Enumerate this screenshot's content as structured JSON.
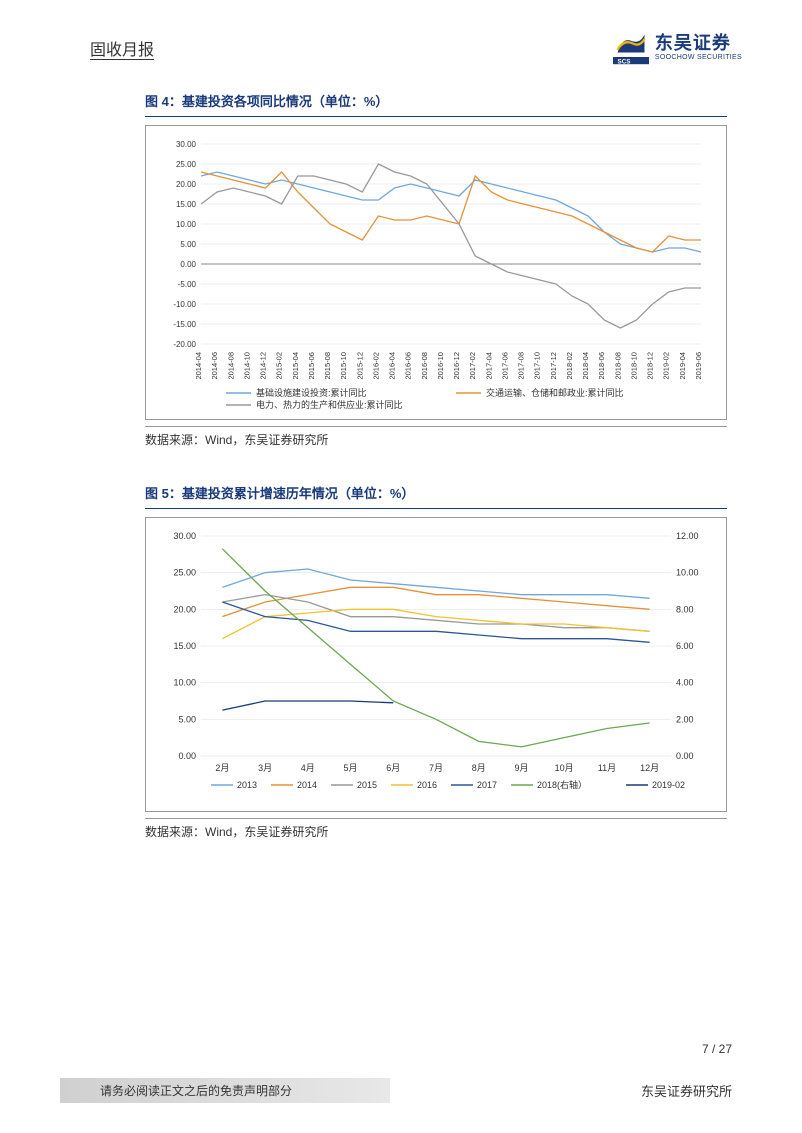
{
  "header": {
    "title": "固收月报",
    "logo_cn": "东吴证券",
    "logo_en": "SOOCHOW SECURITIES",
    "logo_tag": "SCS"
  },
  "fig4": {
    "title": "图 4：基建投资各项同比情况（单位：%）",
    "source": "数据来源：Wind，东吴证券研究所",
    "type": "line",
    "ylim": [
      -20,
      30
    ],
    "ytick_step": 5,
    "yticks": [
      "30.00",
      "25.00",
      "20.00",
      "15.00",
      "10.00",
      "5.00",
      "0.00",
      "-5.00",
      "-10.00",
      "-15.00",
      "-20.00"
    ],
    "xlabels": [
      "2014-04",
      "2014-06",
      "2014-08",
      "2014-10",
      "2014-12",
      "2015-02",
      "2015-04",
      "2015-06",
      "2015-08",
      "2015-10",
      "2015-12",
      "2016-02",
      "2016-04",
      "2016-06",
      "2016-08",
      "2016-10",
      "2016-12",
      "2017-02",
      "2017-04",
      "2017-06",
      "2017-08",
      "2017-10",
      "2017-12",
      "2018-02",
      "2018-04",
      "2018-06",
      "2018-08",
      "2018-10",
      "2018-12",
      "2019-02",
      "2019-04",
      "2019-06"
    ],
    "series": [
      {
        "name": "基础设施建设投资:累计同比",
        "color": "#6fa8dc",
        "values": [
          22,
          23,
          22,
          21,
          20,
          21,
          20,
          19,
          18,
          17,
          16,
          16,
          19,
          20,
          19,
          18,
          17,
          21,
          20,
          19,
          18,
          17,
          16,
          14,
          12,
          8,
          5,
          4,
          3,
          4,
          4,
          3
        ]
      },
      {
        "name": "交通运输、仓储和邮政业:累计同比",
        "color": "#e69138",
        "values": [
          23,
          22,
          21,
          20,
          19,
          23,
          18,
          14,
          10,
          8,
          6,
          12,
          11,
          11,
          12,
          11,
          10,
          22,
          18,
          16,
          15,
          14,
          13,
          12,
          10,
          8,
          6,
          4,
          3,
          7,
          6,
          6
        ]
      },
      {
        "name": "电力、热力的生产和供应业:累计同比",
        "color": "#999999",
        "values": [
          15,
          18,
          19,
          18,
          17,
          15,
          22,
          22,
          21,
          20,
          18,
          25,
          23,
          22,
          20,
          15,
          10,
          2,
          0,
          -2,
          -3,
          -4,
          -5,
          -8,
          -10,
          -14,
          -16,
          -14,
          -10,
          -7,
          -6,
          -6
        ]
      }
    ],
    "grid_color": "#cccccc",
    "bg": "#ffffff",
    "axis_fontsize": 8,
    "legend_fontsize": 9
  },
  "fig5": {
    "title": "图 5：基建投资累计增速历年情况（单位：%）",
    "source": "数据来源：Wind，东吴证券研究所",
    "type": "line",
    "ylim_left": [
      0,
      30
    ],
    "ytick_left": 5,
    "ylim_right": [
      0,
      12
    ],
    "ytick_right": 2,
    "yticks_left": [
      "30.00",
      "25.00",
      "20.00",
      "15.00",
      "10.00",
      "5.00",
      "0.00"
    ],
    "yticks_right": [
      "12.00",
      "10.00",
      "8.00",
      "6.00",
      "4.00",
      "2.00",
      "0.00"
    ],
    "xlabels": [
      "2月",
      "3月",
      "4月",
      "5月",
      "6月",
      "7月",
      "8月",
      "9月",
      "10月",
      "11月",
      "12月"
    ],
    "series": [
      {
        "name": "2013",
        "color": "#6fa8dc",
        "axis": "left",
        "values": [
          23,
          25,
          25.5,
          24,
          23.5,
          23,
          22.5,
          22,
          22,
          22,
          21.5
        ]
      },
      {
        "name": "2014",
        "color": "#e69138",
        "axis": "left",
        "values": [
          19,
          21,
          22,
          23,
          23,
          22,
          22,
          21.5,
          21,
          20.5,
          20
        ]
      },
      {
        "name": "2015",
        "color": "#999999",
        "axis": "left",
        "values": [
          21,
          22,
          21,
          19,
          19,
          18.5,
          18,
          18,
          17.5,
          17.5,
          17
        ]
      },
      {
        "name": "2016",
        "color": "#f1c232",
        "axis": "left",
        "values": [
          16,
          19,
          19.5,
          20,
          20,
          19,
          18.5,
          18,
          18,
          17.5,
          17
        ]
      },
      {
        "name": "2017",
        "color": "#2b5797",
        "axis": "left",
        "values": [
          21,
          19,
          18.5,
          17,
          17,
          17,
          16.5,
          16,
          16,
          16,
          15.5
        ]
      },
      {
        "name": "2018(右轴）",
        "color": "#6aa84f",
        "axis": "right",
        "values": [
          11.3,
          9,
          7,
          5,
          3,
          2,
          0.8,
          0.5,
          1,
          1.5,
          1.8
        ]
      },
      {
        "name": "2019-02",
        "color": "#1a3a7a",
        "axis": "right",
        "values": [
          2.5,
          3,
          3,
          3,
          2.9,
          null,
          null,
          null,
          null,
          null,
          null
        ]
      }
    ],
    "grid_color": "#cccccc",
    "bg": "#ffffff",
    "axis_fontsize": 9,
    "legend_fontsize": 9
  },
  "footer": {
    "page": "7 / 27",
    "disclaimer": "请务必阅读正文之后的免责声明部分",
    "inst": "东吴证券研究所"
  }
}
